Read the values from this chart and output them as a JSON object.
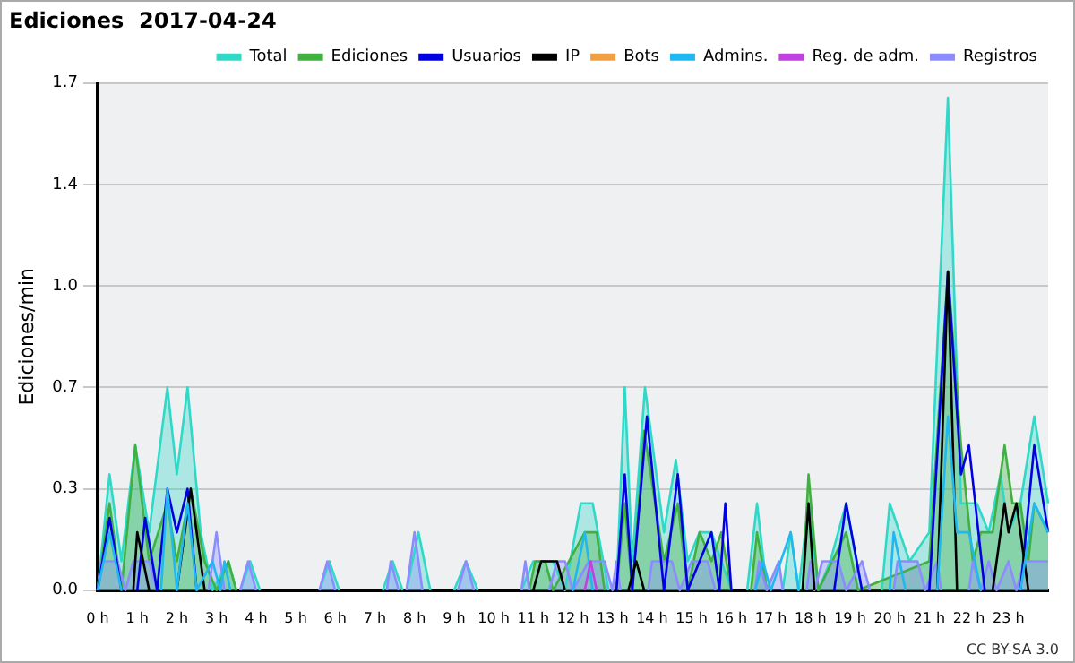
{
  "chart_data": {
    "type": "line",
    "title": "Ediciones  2017-04-24",
    "ylabel": "Ediciones/min",
    "annotations": [
      "CC BY-SA 3.0"
    ],
    "xlim": [
      0,
      24
    ],
    "xticks": [
      {
        "value": 0,
        "label": "0 h"
      },
      {
        "value": 1,
        "label": "1 h"
      },
      {
        "value": 2,
        "label": "2 h"
      },
      {
        "value": 3,
        "label": "3 h"
      },
      {
        "value": 4,
        "label": "4 h"
      },
      {
        "value": 5,
        "label": "5 h"
      },
      {
        "value": 6,
        "label": "6 h"
      },
      {
        "value": 7,
        "label": "7 h"
      },
      {
        "value": 8,
        "label": "8 h"
      },
      {
        "value": 9,
        "label": "9 h"
      },
      {
        "value": 10,
        "label": "10 h"
      },
      {
        "value": 11,
        "label": "11 h"
      },
      {
        "value": 12,
        "label": "12 h"
      },
      {
        "value": 13,
        "label": "13 h"
      },
      {
        "value": 14,
        "label": "14 h"
      },
      {
        "value": 15,
        "label": "15 h"
      },
      {
        "value": 16,
        "label": "16 h"
      },
      {
        "value": 17,
        "label": "17 h"
      },
      {
        "value": 18,
        "label": "18 h"
      },
      {
        "value": 19,
        "label": "19 h"
      },
      {
        "value": 20,
        "label": "20 h"
      },
      {
        "value": 21,
        "label": "21 h"
      },
      {
        "value": 22,
        "label": "22 h"
      },
      {
        "value": 23,
        "label": "23 h"
      }
    ],
    "ylim": [
      0,
      1.75
    ],
    "yticks": [
      {
        "value": 0,
        "label": "0.0"
      },
      {
        "value": 0.35,
        "label": "0.3"
      },
      0.7,
      {
        "value": 1.05,
        "label": "1.0"
      },
      1.4,
      {
        "value": 1.75,
        "label": "1.7"
      }
    ],
    "grid": "y",
    "legend": "top right",
    "series": [
      {
        "name": "Total",
        "type": "area",
        "color": "#30d8c8",
        "x": [
          0,
          0.3,
          0.6,
          0.95,
          1.3,
          1.76,
          2.0,
          2.27,
          2.6,
          2.9,
          3.3,
          3.5,
          3.6,
          3.85,
          4.1,
          5.6,
          5.85,
          6.1,
          7.2,
          7.45,
          7.7,
          7.8,
          8.1,
          8.4,
          9.0,
          9.3,
          9.6,
          10.7,
          11.0,
          11.5,
          11.8,
          12.2,
          12.5,
          12.9,
          13.1,
          13.31,
          13.5,
          13.82,
          14.3,
          14.6,
          14.9,
          15.2,
          15.5,
          15.75,
          16.0,
          16.4,
          16.65,
          16.9,
          17.3,
          17.5,
          17.7,
          17.95,
          18.2,
          18.5,
          18.9,
          19.3,
          19.8,
          20.0,
          20.5,
          21.0,
          21.47,
          21.8,
          22.2,
          22.5,
          22.8,
          23.0,
          23.3,
          23.65,
          24
        ],
        "values": [
          0,
          0.4,
          0.1,
          0.5,
          0.2,
          0.7,
          0.4,
          0.7,
          0.2,
          0,
          0.1,
          0,
          0,
          0.1,
          0,
          0,
          0.1,
          0,
          0,
          0.1,
          0,
          0,
          0.2,
          0,
          0,
          0.1,
          0,
          0,
          0.1,
          0.1,
          0,
          0.3,
          0.3,
          0,
          0,
          0.7,
          0.1,
          0.7,
          0.2,
          0.45,
          0.1,
          0.2,
          0.2,
          0.1,
          0,
          0,
          0.3,
          0,
          0,
          0.2,
          0,
          0.3,
          0,
          0.1,
          0.3,
          0,
          0,
          0.3,
          0.1,
          0.2,
          1.7,
          0.3,
          0.3,
          0.2,
          0.4,
          0.2,
          0.3,
          0.6,
          0.3
        ]
      },
      {
        "name": "Ediciones",
        "type": "area",
        "color": "#40b040",
        "x": [
          0,
          0.3,
          0.6,
          0.95,
          1.3,
          1.76,
          2.0,
          2.35,
          2.7,
          3.0,
          3.3,
          3.5,
          10.9,
          11.05,
          11.3,
          11.5,
          12.3,
          12.6,
          12.8,
          13.1,
          13.31,
          13.5,
          13.8,
          14.3,
          14.65,
          14.9,
          15.2,
          15.5,
          15.75,
          16.0,
          16.5,
          16.65,
          16.9,
          17.8,
          17.95,
          18.2,
          18.9,
          19.2,
          21.0,
          21.47,
          21.8,
          22.1,
          22.3,
          22.6,
          22.9,
          23.1,
          23.3,
          23.5,
          23.65,
          24
        ],
        "values": [
          0,
          0.3,
          0,
          0.5,
          0.1,
          0.3,
          0.1,
          0.35,
          0.1,
          0,
          0.1,
          0,
          0,
          0.1,
          0.1,
          0,
          0.2,
          0.2,
          0,
          0,
          0.3,
          0,
          0.55,
          0.1,
          0.3,
          0,
          0.2,
          0.1,
          0.2,
          0,
          0,
          0.2,
          0,
          0,
          0.4,
          0,
          0.2,
          0,
          0.1,
          1.1,
          0.5,
          0.1,
          0.2,
          0.2,
          0.5,
          0.3,
          0.3,
          0.1,
          0.3,
          0.2
        ]
      },
      {
        "name": "Usuarios",
        "type": "line",
        "color": "#0000e0",
        "x": [
          0,
          0.3,
          0.6,
          1.0,
          1.2,
          1.5,
          1.76,
          2.0,
          2.27,
          2.5,
          13.1,
          13.31,
          13.5,
          13.87,
          14.3,
          14.65,
          14.9,
          15.5,
          15.7,
          15.85,
          16.0,
          18.6,
          18.9,
          19.3,
          21.0,
          21.47,
          21.8,
          22.0,
          22.4,
          23.3,
          23.65,
          24
        ],
        "values": [
          0,
          0.25,
          0,
          0,
          0.25,
          0,
          0.35,
          0.2,
          0.35,
          0,
          0,
          0.4,
          0,
          0.6,
          0,
          0.4,
          0,
          0.2,
          0,
          0.3,
          0,
          0,
          0.3,
          0,
          0,
          1.1,
          0.4,
          0.5,
          0,
          0,
          0.5,
          0.2
        ]
      },
      {
        "name": "IP",
        "type": "line",
        "color": "#000000",
        "x": [
          0.9,
          1.0,
          1.3,
          2.0,
          2.35,
          2.7,
          11.0,
          11.2,
          11.6,
          11.8,
          13.4,
          13.6,
          13.8,
          17.8,
          17.95,
          18.1,
          21.2,
          21.47,
          21.7,
          22.6,
          22.9,
          23.0,
          23.2,
          23.5
        ],
        "values": [
          0,
          0.2,
          0,
          0,
          0.35,
          0,
          0,
          0.1,
          0.1,
          0,
          0,
          0.1,
          0,
          0,
          0.3,
          0,
          0,
          1.1,
          0,
          0,
          0.3,
          0.2,
          0.3,
          0
        ]
      },
      {
        "name": "Bots",
        "type": "line",
        "color": "#f0a040"
      },
      {
        "name": "Admins.",
        "type": "line",
        "color": "#20b8f0",
        "x": [
          0,
          0.3,
          0.6,
          1.6,
          1.76,
          2.0,
          2.27,
          2.5,
          2.9,
          3.1,
          3.2,
          3.35,
          12.0,
          12.3,
          12.5,
          16.6,
          16.8,
          17.0,
          17.5,
          17.7,
          20.0,
          20.1,
          20.4,
          21.2,
          21.47,
          21.7,
          22.0,
          22.3,
          23.3,
          23.65,
          24
        ],
        "values": [
          0,
          0.2,
          0,
          0,
          0.35,
          0,
          0.3,
          0,
          0.1,
          0,
          0.1,
          0,
          0,
          0.2,
          0,
          0,
          0.1,
          0,
          0.2,
          0,
          0,
          0.2,
          0,
          0,
          0.6,
          0.2,
          0.2,
          0,
          0,
          0.3,
          0.2
        ]
      },
      {
        "name": "Reg. de adm.",
        "type": "line",
        "color": "#c040e0",
        "x": [
          12.3,
          12.45,
          12.6
        ],
        "values": [
          0,
          0.1,
          0
        ]
      },
      {
        "name": "Registros",
        "type": "area",
        "color": "#8c8cff",
        "x": [
          0,
          0.1,
          0.5,
          0.7,
          0.9,
          1.3,
          1.5,
          2.8,
          3.0,
          3.2,
          3.6,
          3.8,
          4.0,
          5.6,
          5.8,
          6.0,
          7.3,
          7.4,
          7.6,
          7.8,
          8.0,
          8.2,
          9.1,
          9.3,
          9.5,
          10.7,
          10.8,
          10.9,
          11.4,
          11.6,
          11.8,
          12.0,
          12.4,
          12.8,
          13.0,
          13.1,
          13.2,
          13.9,
          14.0,
          14.5,
          14.7,
          15.0,
          15.4,
          15.6,
          16.6,
          16.7,
          16.9,
          17.2,
          17.3,
          17.9,
          18.0,
          18.1,
          18.3,
          18.7,
          18.9,
          19.3,
          19.5,
          20.1,
          20.2,
          20.7,
          20.9,
          21.2,
          21.3,
          22.0,
          22.1,
          22.3,
          22.5,
          22.7,
          23.0,
          23.2,
          23.4,
          24
        ],
        "values": [
          0,
          0.1,
          0.1,
          0,
          0.1,
          0.1,
          0,
          0,
          0.2,
          0,
          0,
          0.1,
          0,
          0,
          0.1,
          0,
          0,
          0.1,
          0,
          0,
          0.2,
          0,
          0,
          0.1,
          0,
          0,
          0.1,
          0,
          0,
          0.1,
          0.1,
          0,
          0.1,
          0.1,
          0,
          0.1,
          0,
          0,
          0.1,
          0.1,
          0,
          0.1,
          0.1,
          0,
          0,
          0.1,
          0,
          0.1,
          0,
          0,
          0.1,
          0,
          0.1,
          0.1,
          0,
          0.1,
          0,
          0,
          0.1,
          0.1,
          0,
          0.1,
          0,
          0,
          0.1,
          0,
          0.1,
          0,
          0.1,
          0,
          0.1,
          0.1
        ]
      }
    ]
  }
}
